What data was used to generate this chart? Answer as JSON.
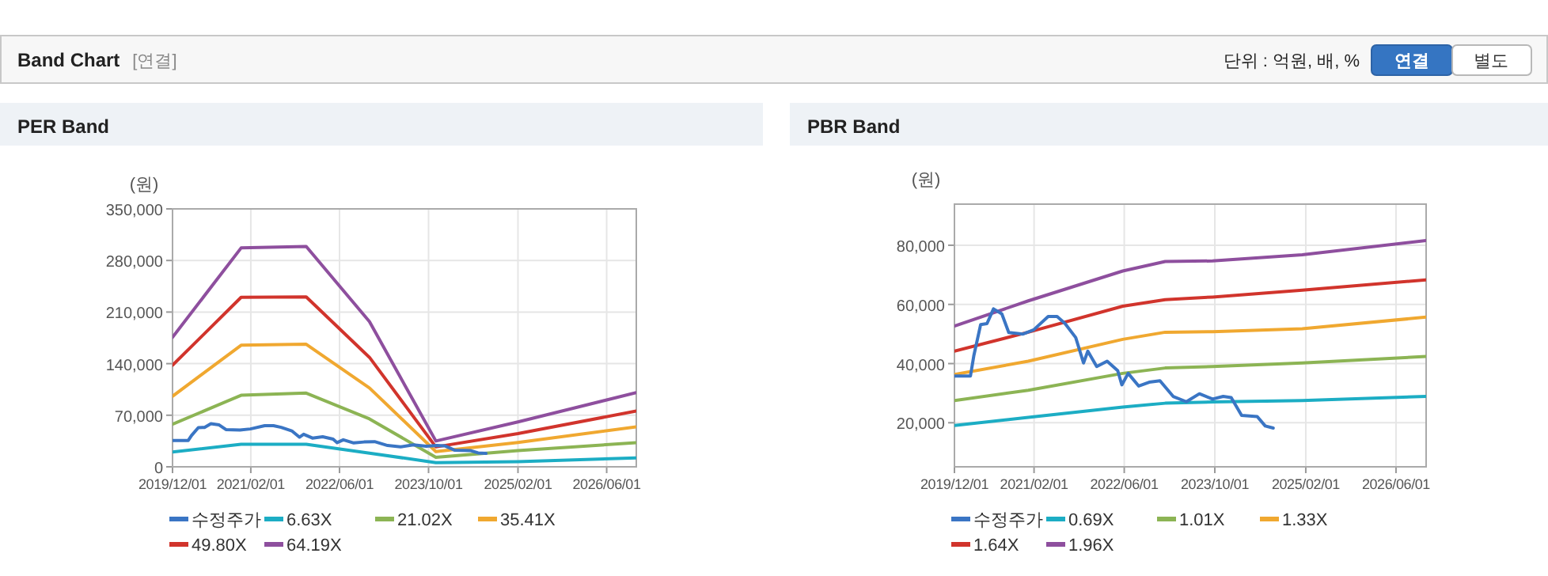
{
  "chart_data": [
    {
      "type": "other",
      "title": "Band Chart",
      "annotations": [
        "[연결]",
        "단위 : 억원, 배, %",
        "연결",
        "별도"
      ]
    },
    {
      "type": "line",
      "title": "PER Band",
      "ylabel": "(원)",
      "grid": true,
      "legend": "bottom",
      "xlim": [
        "2019-12-01",
        "2026-11-10"
      ],
      "xticks": [
        {
          "value": "2019-12-01",
          "label": "2019/12/01"
        },
        {
          "value": "2021-02-01",
          "label": "2021/02/01"
        },
        {
          "value": "2022-06-01",
          "label": "2022/06/01"
        },
        {
          "value": "2023-10-01",
          "label": "2023/10/01"
        },
        {
          "value": "2025-02-01",
          "label": "2025/02/01"
        },
        {
          "value": "2026-06-01",
          "label": "2026/06/01"
        }
      ],
      "ylim": [
        0,
        350000
      ],
      "yticks": [
        {
          "value": 0,
          "label": "0"
        },
        {
          "value": 70000,
          "label": "70,000"
        },
        {
          "value": 140000,
          "label": "140,000"
        },
        {
          "value": 210000,
          "label": "210,000"
        },
        {
          "value": 280000,
          "label": "280,000"
        },
        {
          "value": 350000,
          "label": "350,000"
        }
      ],
      "x": [
        "2019-12-01",
        "2020-12-10",
        "2021-12-01",
        "2022-11-12",
        "2023-11-10",
        "2025-02-01",
        "2026-11-10"
      ],
      "series": [
        {
          "name": "수정주가",
          "color": "#3a75c4",
          "x": [
            "2019-12-01",
            "2020-02-25",
            "2020-03-14",
            "2020-04-20",
            "2020-05-24",
            "2020-06-28",
            "2020-08-12",
            "2020-09-18",
            "2020-12-04",
            "2021-01-30",
            "2021-04-18",
            "2021-06-05",
            "2021-07-17",
            "2021-09-13",
            "2021-10-25",
            "2021-11-17",
            "2022-01-04",
            "2022-03-01",
            "2022-04-27",
            "2022-05-19",
            "2022-06-22",
            "2022-08-18",
            "2022-10-13",
            "2022-12-10",
            "2023-02-19",
            "2023-05-01",
            "2023-07-10",
            "2023-09-19",
            "2023-11-15",
            "2023-12-28",
            "2024-02-22",
            "2024-05-16",
            "2024-06-28",
            "2024-08-10"
          ],
          "values": [
            35800,
            35800,
            42600,
            53200,
            53500,
            58500,
            56800,
            50500,
            50000,
            51400,
            55900,
            55900,
            53600,
            48800,
            40200,
            44200,
            39000,
            40800,
            37600,
            32800,
            36700,
            32400,
            33700,
            34200,
            28900,
            27100,
            29800,
            28000,
            28900,
            28500,
            22500,
            22100,
            18900,
            18200
          ]
        },
        {
          "name": "6.63X",
          "color": "#1cadc4",
          "values": [
            20000,
            30700,
            30700,
            18600,
            5700,
            7100,
            12100
          ]
        },
        {
          "name": "21.02X",
          "color": "#8cb454",
          "values": [
            57800,
            97100,
            100000,
            65000,
            12900,
            22000,
            32800
          ]
        },
        {
          "name": "35.41X",
          "color": "#f0a830",
          "values": [
            95700,
            165000,
            166400,
            107000,
            20700,
            33000,
            54300
          ]
        },
        {
          "name": "49.80X",
          "color": "#d1342c",
          "values": [
            137800,
            230000,
            230600,
            148500,
            27000,
            45000,
            75700
          ]
        },
        {
          "name": "64.19X",
          "color": "#8e4f9e",
          "values": [
            175700,
            297000,
            299000,
            197000,
            35000,
            61000,
            100700
          ]
        }
      ]
    },
    {
      "type": "line",
      "title": "PBR Band",
      "ylabel": "(원)",
      "grid": true,
      "legend": "bottom",
      "xlim": [
        "2019-12-01",
        "2026-11-10"
      ],
      "xticks": [
        {
          "value": "2019-12-01",
          "label": "2019/12/01"
        },
        {
          "value": "2021-02-01",
          "label": "2021/02/01"
        },
        {
          "value": "2022-06-01",
          "label": "2022/06/01"
        },
        {
          "value": "2023-10-01",
          "label": "2023/10/01"
        },
        {
          "value": "2025-02-01",
          "label": "2025/02/01"
        },
        {
          "value": "2026-06-01",
          "label": "2026/06/01"
        }
      ],
      "ylim": [
        5100,
        93900
      ],
      "yticks": [
        {
          "value": 20000,
          "label": "20,000"
        },
        {
          "value": 40000,
          "label": "40,000"
        },
        {
          "value": 60000,
          "label": "60,000"
        },
        {
          "value": 80000,
          "label": "80,000"
        }
      ],
      "x": [
        "2019-12-01",
        "2021-01-01",
        "2022-05-24",
        "2023-01-07",
        "2023-09-19",
        "2025-01-13",
        "2026-11-10"
      ],
      "series": [
        {
          "name": "수정주가",
          "color": "#3a75c4",
          "x": [
            "2019-12-01",
            "2020-02-25",
            "2020-03-14",
            "2020-04-20",
            "2020-05-24",
            "2020-06-28",
            "2020-08-12",
            "2020-09-18",
            "2020-12-04",
            "2021-01-30",
            "2021-04-18",
            "2021-06-05",
            "2021-07-17",
            "2021-09-13",
            "2021-10-25",
            "2021-11-17",
            "2022-01-04",
            "2022-03-01",
            "2022-04-27",
            "2022-05-19",
            "2022-06-22",
            "2022-08-18",
            "2022-10-13",
            "2022-12-10",
            "2023-02-19",
            "2023-05-01",
            "2023-07-10",
            "2023-09-19",
            "2023-11-15",
            "2023-12-28",
            "2024-02-22",
            "2024-05-16",
            "2024-06-28",
            "2024-08-10"
          ],
          "values": [
            35800,
            35800,
            42600,
            53200,
            53500,
            58500,
            56800,
            50500,
            50000,
            51400,
            55900,
            55900,
            53600,
            48800,
            40200,
            44200,
            39000,
            40800,
            37600,
            32800,
            36700,
            32400,
            33700,
            34200,
            28900,
            27100,
            29800,
            28000,
            28900,
            28500,
            22500,
            22100,
            18900,
            18200
          ]
        },
        {
          "name": "0.69X",
          "color": "#1cadc4",
          "values": [
            19100,
            21800,
            25300,
            26600,
            27000,
            27500,
            28900
          ]
        },
        {
          "name": "1.01X",
          "color": "#8cb454",
          "values": [
            27500,
            31000,
            36700,
            38500,
            39000,
            40200,
            42400
          ]
        },
        {
          "name": "1.33X",
          "color": "#f0a830",
          "values": [
            36300,
            40800,
            48200,
            50600,
            50800,
            51800,
            55700
          ]
        },
        {
          "name": "1.64X",
          "color": "#d1342c",
          "values": [
            44200,
            50600,
            59400,
            61600,
            62500,
            64800,
            68300
          ]
        },
        {
          "name": "1.96X",
          "color": "#8e4f9e",
          "values": [
            52700,
            61200,
            71300,
            74500,
            74700,
            76800,
            81600
          ]
        }
      ]
    }
  ]
}
